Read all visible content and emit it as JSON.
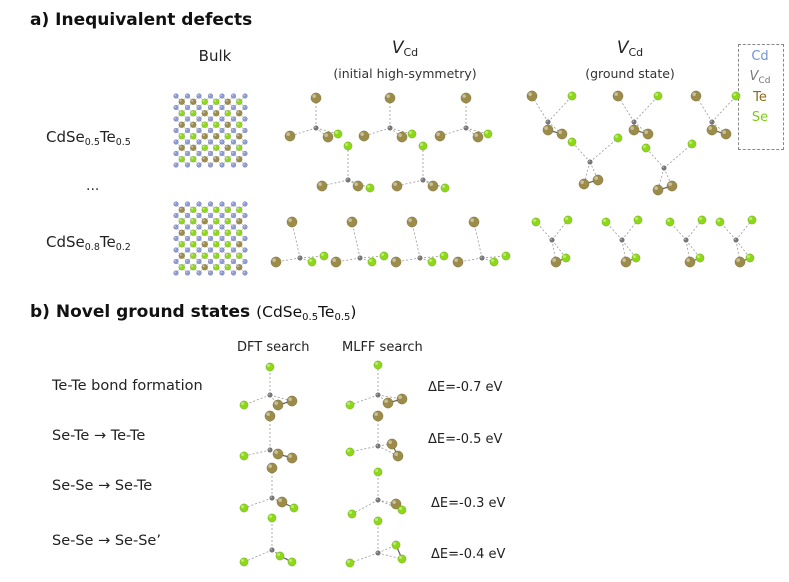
{
  "panel_a": {
    "title": "a) Inequivalent defects",
    "columns": {
      "bulk": "Bulk",
      "initial": {
        "symbol": "V",
        "subscript": "Cd",
        "note": "(initial high-symmetry)"
      },
      "ground": {
        "symbol": "V",
        "subscript": "Cd",
        "note": "(ground state)"
      }
    },
    "rows": [
      {
        "prefix": "CdSe",
        "sub1": "0.5",
        "mid": "Te",
        "sub2": "0.5"
      },
      {
        "prefix": "CdSe",
        "sub1": "0.8",
        "mid": "Te",
        "sub2": "0.2"
      }
    ],
    "ellipsis": "...",
    "legend": {
      "cd": "Cd",
      "vac_symbol": "V",
      "vac_sub": "Cd",
      "te": "Te",
      "se": "Se"
    }
  },
  "panel_b": {
    "title": "b) Novel ground states",
    "paren_open": "(",
    "prefix": "CdSe",
    "sub1": "0.5",
    "mid": "Te",
    "sub2": "0.5",
    "paren_close": ")",
    "methods": {
      "dft": "DFT search",
      "mlff": "MLFF search"
    },
    "transitions": [
      {
        "label": "Te-Te bond formation",
        "energy": "ΔE=-0.7 eV"
      },
      {
        "label": "Se-Te → Te-Te",
        "energy": "ΔE=-0.5 eV"
      },
      {
        "label": "Se-Se → Se-Te",
        "energy": "ΔE=-0.3 eV"
      },
      {
        "label": "Se-Se → Se-Se’",
        "energy": "ΔE=-0.4 eV"
      }
    ]
  },
  "colors": {
    "cd": "#8c9ad6",
    "vacancy": "#777777",
    "te": "#9c8c4a",
    "se": "#8ed81a",
    "cd_label": "#6f93d6",
    "vac_label": "#777777",
    "te_label": "#8a6a18",
    "se_label": "#7ccc14"
  }
}
